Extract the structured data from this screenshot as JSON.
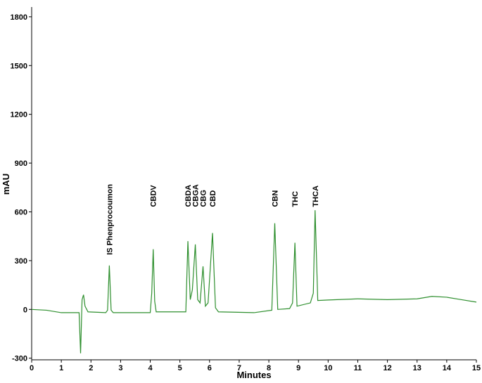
{
  "chart_data": {
    "type": "line",
    "x_label": "Minutes",
    "y_label": "mAU",
    "xlim": [
      0,
      15
    ],
    "ylim": [
      -310,
      1860
    ],
    "xticks": [
      0,
      1,
      2,
      3,
      4,
      5,
      6,
      7,
      8,
      9,
      10,
      11,
      12,
      13,
      14,
      15
    ],
    "yticks": [
      -300,
      0,
      300,
      600,
      900,
      1200,
      1500,
      1800
    ],
    "grid": false,
    "series": [
      {
        "color": "#2e8f2e",
        "x": [
          0,
          0.5,
          1,
          1.6,
          1.65,
          1.7,
          1.75,
          1.8,
          1.9,
          2.5,
          2.56,
          2.62,
          2.68,
          2.75,
          4.0,
          4.05,
          4.1,
          4.15,
          4.2,
          5.2,
          5.27,
          5.35,
          5.42,
          5.52,
          5.6,
          5.68,
          5.78,
          5.86,
          5.95,
          6.1,
          6.2,
          6.3,
          7.5,
          8.1,
          8.2,
          8.3,
          8.7,
          8.8,
          8.88,
          8.95,
          9.4,
          9.5,
          9.56,
          9.65,
          10.0,
          11,
          12,
          13,
          13.5,
          14,
          14.5,
          15
        ],
        "values": [
          0,
          -5,
          -20,
          -20,
          -270,
          60,
          90,
          20,
          -15,
          -20,
          -5,
          270,
          -5,
          -20,
          -20,
          100,
          370,
          50,
          -15,
          -15,
          420,
          60,
          120,
          400,
          60,
          40,
          265,
          20,
          40,
          470,
          10,
          -15,
          -20,
          -5,
          530,
          0,
          5,
          40,
          410,
          20,
          40,
          100,
          610,
          55,
          58,
          65,
          60,
          65,
          80,
          75,
          60,
          45
        ]
      }
    ],
    "annotations": [
      {
        "text": "IS Phenprocoumon",
        "x": 2.62,
        "y": 335
      },
      {
        "text": "CBDV",
        "x": 4.1,
        "y": 630
      },
      {
        "text": "CBDA",
        "x": 5.27,
        "y": 630
      },
      {
        "text": "CBGA",
        "x": 5.52,
        "y": 630
      },
      {
        "text": "CBG",
        "x": 5.78,
        "y": 630
      },
      {
        "text": "CBD",
        "x": 6.1,
        "y": 630
      },
      {
        "text": "CBN",
        "x": 8.2,
        "y": 630
      },
      {
        "text": "THC",
        "x": 8.88,
        "y": 630
      },
      {
        "text": "THCA",
        "x": 9.56,
        "y": 630
      }
    ]
  }
}
